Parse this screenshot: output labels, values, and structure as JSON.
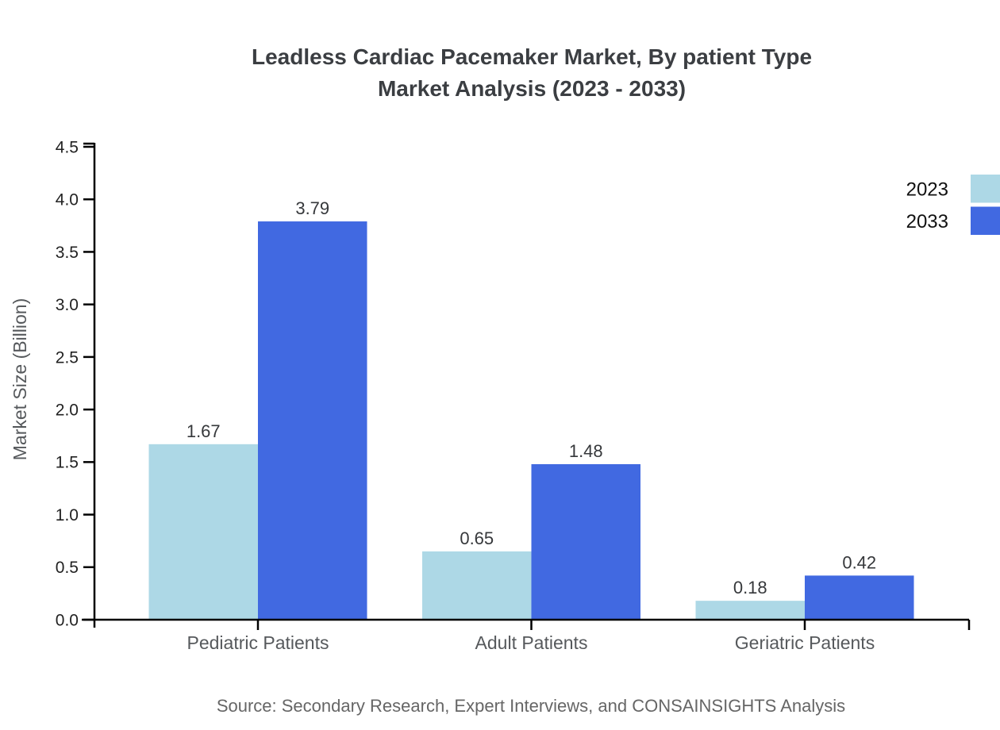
{
  "chart_data": {
    "type": "bar",
    "title_line1": "Leadless Cardiac Pacemaker Market, By patient Type",
    "title_line2": "Market Analysis (2023 - 2033)",
    "categories": [
      "Pediatric Patients",
      "Adult Patients",
      "Geriatric Patients"
    ],
    "series": [
      {
        "name": "2023",
        "color": "#ADD8E6",
        "values": [
          1.67,
          0.65,
          0.18
        ]
      },
      {
        "name": "2033",
        "color": "#4169E1",
        "values": [
          3.79,
          1.48,
          0.42
        ]
      }
    ],
    "xlabel": "",
    "ylabel": "Market Size (Billion)",
    "ylim": [
      0,
      4.5
    ],
    "ytick_step": 0.5,
    "ytick_labels": [
      "0.0",
      "0.5",
      "1.0",
      "1.5",
      "2.0",
      "2.5",
      "3.0",
      "3.5",
      "4.0",
      "4.5"
    ],
    "grid": false,
    "legend_position": "top-right",
    "axis_color": "#000000",
    "text_colors": {
      "title": "#3b3e42",
      "ticks": "#222222",
      "category": "#56595c",
      "value_labels": "#36383b",
      "legend": "#111111",
      "ylabel": "#56595c",
      "source": "#666666"
    },
    "source": "Source: Secondary Research, Expert Interviews, and CONSAINSIGHTS Analysis"
  }
}
